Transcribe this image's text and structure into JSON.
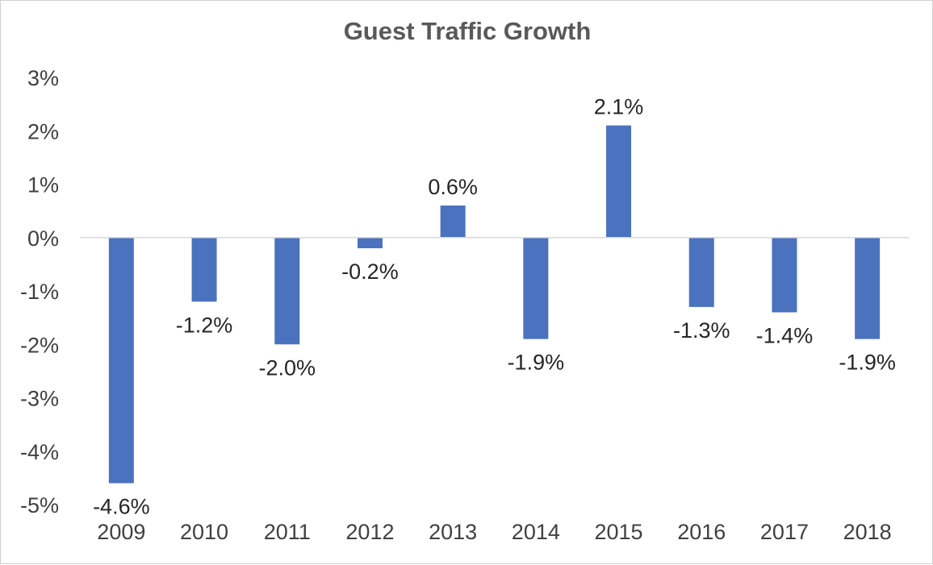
{
  "chart_data": {
    "type": "bar",
    "title": "Guest Traffic Growth",
    "xlabel": "",
    "ylabel": "",
    "categories": [
      "2009",
      "2010",
      "2011",
      "2012",
      "2013",
      "2014",
      "2015",
      "2016",
      "2017",
      "2018"
    ],
    "values": [
      -4.6,
      -1.2,
      -2.0,
      -0.2,
      0.6,
      -1.9,
      2.1,
      -1.3,
      -1.4,
      -1.9
    ],
    "data_labels": [
      "-4.6%",
      "-1.2%",
      "-2.0%",
      "-0.2%",
      "0.6%",
      "-1.9%",
      "2.1%",
      "-1.3%",
      "-1.4%",
      "-1.9%"
    ],
    "ylim": [
      -5,
      3
    ],
    "yticks": [
      3,
      2,
      1,
      0,
      -1,
      -2,
      -3,
      -4,
      -5
    ],
    "ytick_labels": [
      "3%",
      "2%",
      "1%",
      "0%",
      "-1%",
      "-2%",
      "-3%",
      "-4%",
      "-5%"
    ],
    "grid": false,
    "legend": "none",
    "bar_color": "#4A72BF",
    "axis_color": "#d9d9d9"
  }
}
